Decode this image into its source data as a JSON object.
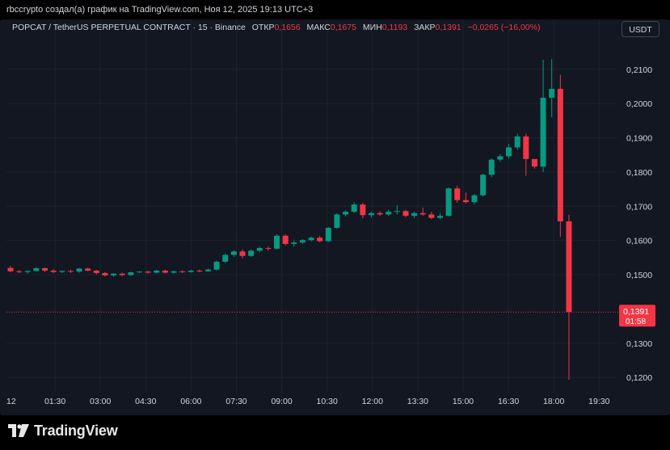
{
  "header": {
    "caption": "rbccrypto создал(а) график на TradingView.com, Ноя 12, 2025 19:13 UTC+3"
  },
  "legend": {
    "symbol": "POPCAT / TetherUS PERPETUAL CONTRACT · 15 · Binance",
    "open_label": "ОТКР",
    "open": "0,1656",
    "high_label": "МАКС",
    "high": "0,1675",
    "low_label": "МИН",
    "low": "0,1193",
    "close_label": "ЗАКР",
    "close": "0,1391",
    "change": "−0,0265 (−16,00%)"
  },
  "currency_button": "USDT",
  "footer": {
    "brand": "TradingView"
  },
  "chart_data": {
    "type": "candlestick",
    "timeframe": "15",
    "x_tick_labels": [
      "12",
      "01:30",
      "03:00",
      "04:30",
      "06:00",
      "07:30",
      "09:00",
      "10:30",
      "12:00",
      "13:30",
      "15:00",
      "16:30",
      "18:00",
      "19:30"
    ],
    "y_tick_labels": [
      "0,1200",
      "0,1300",
      "0,1500",
      "0,1600",
      "0,1700",
      "0,1800",
      "0,1900",
      "0,2000",
      "0,2100"
    ],
    "ylim": [
      0.1165,
      0.2175
    ],
    "grid": true,
    "colors": {
      "up": "#089981",
      "down": "#f23645",
      "background": "#121722",
      "grid": "#1e222d",
      "axis_text": "#d1d4dc"
    },
    "last_price": {
      "value": 0.1391,
      "label": "0,1391",
      "countdown": "01:58"
    },
    "candles": [
      [
        0.152,
        0.1526,
        0.1507,
        0.151
      ],
      [
        0.151,
        0.1514,
        0.1505,
        0.1508
      ],
      [
        0.1508,
        0.1512,
        0.1503,
        0.1511
      ],
      [
        0.1511,
        0.1522,
        0.1509,
        0.1519
      ],
      [
        0.1519,
        0.1522,
        0.1508,
        0.1512
      ],
      [
        0.1512,
        0.1516,
        0.1505,
        0.1508
      ],
      [
        0.1508,
        0.1513,
        0.1505,
        0.1511
      ],
      [
        0.1511,
        0.1515,
        0.1505,
        0.1509
      ],
      [
        0.1509,
        0.152,
        0.1506,
        0.1518
      ],
      [
        0.1518,
        0.1521,
        0.151,
        0.1512
      ],
      [
        0.1512,
        0.1514,
        0.1501,
        0.1505
      ],
      [
        0.1505,
        0.1508,
        0.1495,
        0.1498
      ],
      [
        0.1498,
        0.1505,
        0.1494,
        0.1503
      ],
      [
        0.1503,
        0.1506,
        0.1496,
        0.1499
      ],
      [
        0.1499,
        0.1509,
        0.1496,
        0.1507
      ],
      [
        0.1507,
        0.1511,
        0.1505,
        0.1509
      ],
      [
        0.1509,
        0.1512,
        0.1503,
        0.1506
      ],
      [
        0.1506,
        0.1514,
        0.1504,
        0.1512
      ],
      [
        0.1512,
        0.1515,
        0.1504,
        0.1506
      ],
      [
        0.1506,
        0.1512,
        0.1503,
        0.151
      ],
      [
        0.151,
        0.1513,
        0.1505,
        0.1508
      ],
      [
        0.1508,
        0.1514,
        0.1506,
        0.1512
      ],
      [
        0.1512,
        0.1515,
        0.1507,
        0.151
      ],
      [
        0.151,
        0.1518,
        0.1508,
        0.1515
      ],
      [
        0.1515,
        0.1541,
        0.1512,
        0.1538
      ],
      [
        0.1538,
        0.1562,
        0.1534,
        0.1558
      ],
      [
        0.1558,
        0.1572,
        0.1552,
        0.1568
      ],
      [
        0.1568,
        0.1574,
        0.1548,
        0.1555
      ],
      [
        0.1555,
        0.1574,
        0.1552,
        0.157
      ],
      [
        0.157,
        0.1582,
        0.1565,
        0.1578
      ],
      [
        0.1578,
        0.1583,
        0.157,
        0.1576
      ],
      [
        0.1576,
        0.1618,
        0.1574,
        0.1614
      ],
      [
        0.1614,
        0.1618,
        0.1585,
        0.159
      ],
      [
        0.159,
        0.16,
        0.1582,
        0.1594
      ],
      [
        0.1594,
        0.1604,
        0.159,
        0.1601
      ],
      [
        0.1601,
        0.1612,
        0.1598,
        0.1608
      ],
      [
        0.1608,
        0.1614,
        0.1595,
        0.1598
      ],
      [
        0.1598,
        0.164,
        0.1595,
        0.1637
      ],
      [
        0.1637,
        0.168,
        0.1634,
        0.1676
      ],
      [
        0.1676,
        0.1688,
        0.167,
        0.1684
      ],
      [
        0.1684,
        0.1712,
        0.168,
        0.1705
      ],
      [
        0.1705,
        0.171,
        0.1665,
        0.1674
      ],
      [
        0.1674,
        0.1684,
        0.1668,
        0.168
      ],
      [
        0.168,
        0.1686,
        0.1672,
        0.1676
      ],
      [
        0.1676,
        0.169,
        0.1672,
        0.1684
      ],
      [
        0.1684,
        0.1703,
        0.1676,
        0.1686
      ],
      [
        0.1686,
        0.169,
        0.1668,
        0.1672
      ],
      [
        0.1672,
        0.1684,
        0.1665,
        0.168
      ],
      [
        0.168,
        0.1696,
        0.1672,
        0.1676
      ],
      [
        0.1676,
        0.1684,
        0.1662,
        0.1666
      ],
      [
        0.1666,
        0.168,
        0.1662,
        0.1672
      ],
      [
        0.1672,
        0.1755,
        0.167,
        0.1752
      ],
      [
        0.1752,
        0.176,
        0.171,
        0.1718
      ],
      [
        0.1718,
        0.174,
        0.1708,
        0.1712
      ],
      [
        0.1712,
        0.1736,
        0.1705,
        0.1732
      ],
      [
        0.1732,
        0.1795,
        0.1728,
        0.1792
      ],
      [
        0.1792,
        0.184,
        0.1785,
        0.1836
      ],
      [
        0.1836,
        0.1852,
        0.183,
        0.1846
      ],
      [
        0.1846,
        0.1882,
        0.184,
        0.1872
      ],
      [
        0.1872,
        0.1912,
        0.1865,
        0.1904
      ],
      [
        0.1904,
        0.1912,
        0.1789,
        0.1838
      ],
      [
        0.1838,
        0.183,
        0.181,
        0.1816
      ],
      [
        0.1816,
        0.2128,
        0.18,
        0.2017
      ],
      [
        0.2017,
        0.213,
        0.196,
        0.2043
      ],
      [
        0.2043,
        0.2084,
        0.161,
        0.1656
      ],
      [
        0.1656,
        0.1675,
        0.1193,
        0.1391
      ]
    ]
  }
}
